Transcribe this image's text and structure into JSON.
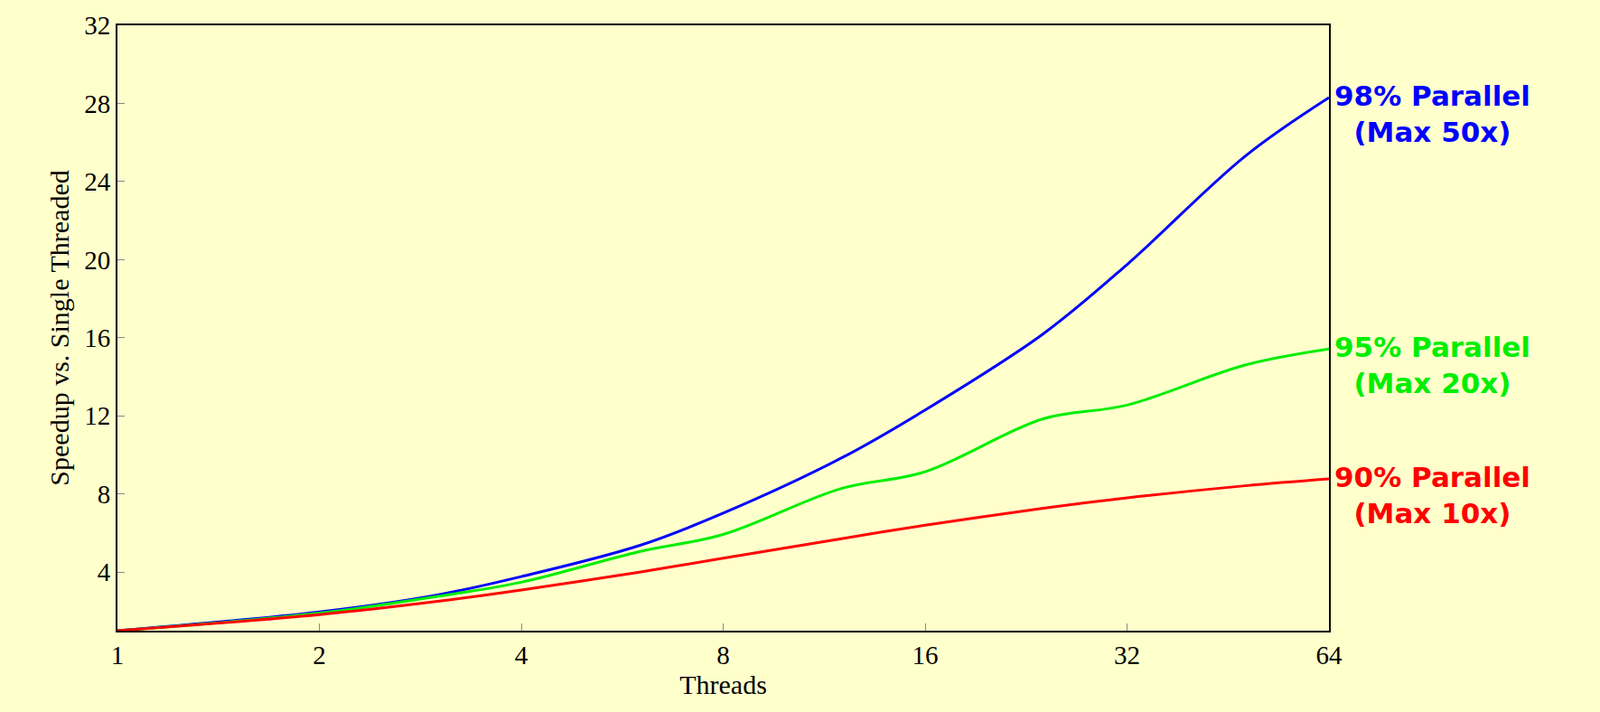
{
  "chart_data": {
    "type": "line",
    "x_label": "Threads",
    "y_label": "Speedup vs. Single Threaded",
    "log": "x",
    "grid": false,
    "xlim": [
      1,
      64
    ],
    "xticks": [
      1,
      2,
      4,
      8,
      16,
      32,
      64
    ],
    "ylim": [
      1,
      32
    ],
    "yticks": [
      4,
      8,
      12,
      16,
      20,
      24,
      28,
      32
    ],
    "x": [
      1,
      2,
      3,
      4,
      6,
      8,
      12,
      16,
      24,
      32,
      48,
      64
    ],
    "series": [
      {
        "name": "98% Parallel",
        "annotation": "(Max 50x)",
        "color": "#0000ff",
        "values": [
          1,
          1.96,
          2.83,
          3.77,
          5.36,
          7.02,
          9.84,
          12.3,
          16.2,
          19.75,
          25.3,
          28.3
        ]
      },
      {
        "name": "95% Parallel",
        "annotation": "(Max 20x)",
        "color": "#00ee00",
        "values": [
          1,
          1.9,
          2.76,
          3.48,
          5.05,
          5.93,
          8.28,
          9.14,
          11.85,
          12.55,
          14.6,
          15.42
        ]
      },
      {
        "name": "90% Parallel",
        "annotation": "(Max 10x)",
        "color": "#ff0000",
        "values": [
          1,
          1.82,
          2.5,
          3.08,
          4.0,
          4.71,
          5.71,
          6.4,
          7.27,
          7.8,
          8.42,
          8.77
        ]
      }
    ]
  }
}
